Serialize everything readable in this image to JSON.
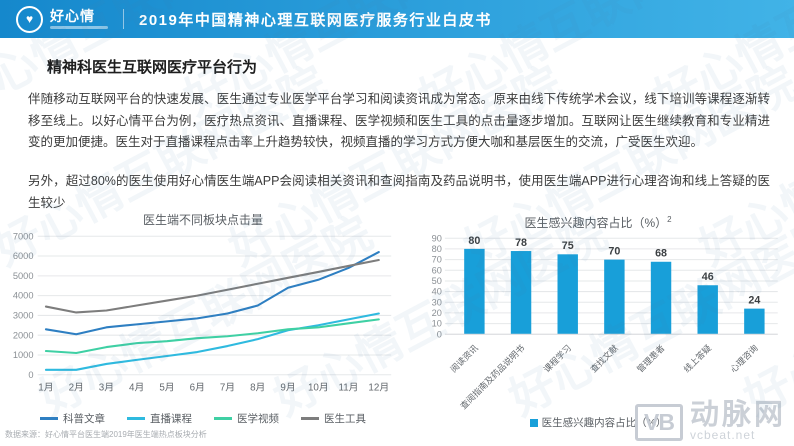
{
  "header": {
    "logo_name": "好心情",
    "title": "2019年中国精神心理互联网医疗服务行业白皮书"
  },
  "section": {
    "title": "精神科医生互联网医疗平台行为",
    "paragraph1": "伴随移动互联网平台的快速发展、医生通过专业医学平台学习和阅读资讯成为常态。原来由线下传统学术会议，线下培训等课程逐渐转移至线上。以好心情平台为例，医疗热点资讯、直播课程、医学视频和医生工具的点击量逐步增加。互联网让医生继续教育和专业精进变的更加便捷。医生对于直播课程点击率上升趋势较快，视频直播的学习方式方便大咖和基层医生的交流，广受医生欢迎。",
    "paragraph2": "另外，超过80%的医生使用好心情医生端APP会阅读相关资讯和查阅指南及药品说明书，使用医生端APP进行心理咨询和线上答疑的医生较少"
  },
  "footnote": "数据来源：好心情平台医生端2019年医生端热点板块分析",
  "watermark": {
    "tile_text": "好心情互联网医院",
    "bottom_right": {
      "badge": "VB",
      "name": "动脉网",
      "site": "vcbeat.net"
    }
  },
  "colors": {
    "header_gradient_start": "#1588cc",
    "header_gradient_end": "#41b3e7",
    "bar_blue": "#189fd9"
  },
  "chart_data": [
    {
      "type": "line",
      "title": "医生端不同板块点击量",
      "categories": [
        "1月",
        "2月",
        "3月",
        "4月",
        "5月",
        "6月",
        "7月",
        "8月",
        "9月",
        "10月",
        "11月",
        "12月"
      ],
      "series": [
        {
          "name": "科普文章",
          "color": "#2e7fc2",
          "values": [
            2300,
            2050,
            2400,
            2550,
            2700,
            2850,
            3100,
            3500,
            4400,
            4800,
            5400,
            6200
          ]
        },
        {
          "name": "直播课程",
          "color": "#2fbadf",
          "values": [
            250,
            250,
            550,
            750,
            950,
            1150,
            1450,
            1800,
            2250,
            2500,
            2800,
            3100
          ]
        },
        {
          "name": "医学视频",
          "color": "#3fd0a4",
          "values": [
            1200,
            1100,
            1400,
            1600,
            1700,
            1850,
            1950,
            2100,
            2300,
            2400,
            2600,
            2800
          ]
        },
        {
          "name": "医生工具",
          "color": "#7d7d7d",
          "values": [
            3450,
            3150,
            3250,
            3500,
            3750,
            4000,
            4300,
            4600,
            4900,
            5200,
            5500,
            5800
          ]
        }
      ],
      "ylim": [
        0,
        7000
      ],
      "yticks": [
        0,
        1000,
        2000,
        3000,
        4000,
        5000,
        6000,
        7000
      ],
      "grid": true,
      "legend_position": "bottom"
    },
    {
      "type": "bar",
      "title": "医生感兴趣内容占比（%）",
      "title_superscript": "2",
      "categories": [
        "阅读资讯",
        "查阅指南及药品说明书",
        "课程学习",
        "查找文献",
        "管理患者",
        "线上答疑",
        "心理咨询"
      ],
      "values": [
        80,
        78,
        75,
        70,
        68,
        46,
        24
      ],
      "bar_color": "#189fd9",
      "ylim": [
        0,
        90
      ],
      "yticks": [
        0,
        10,
        20,
        30,
        40,
        50,
        60,
        70,
        80,
        90
      ],
      "grid": true,
      "legend_label": "医生感兴趣内容占比（%）",
      "legend_position": "bottom"
    }
  ]
}
